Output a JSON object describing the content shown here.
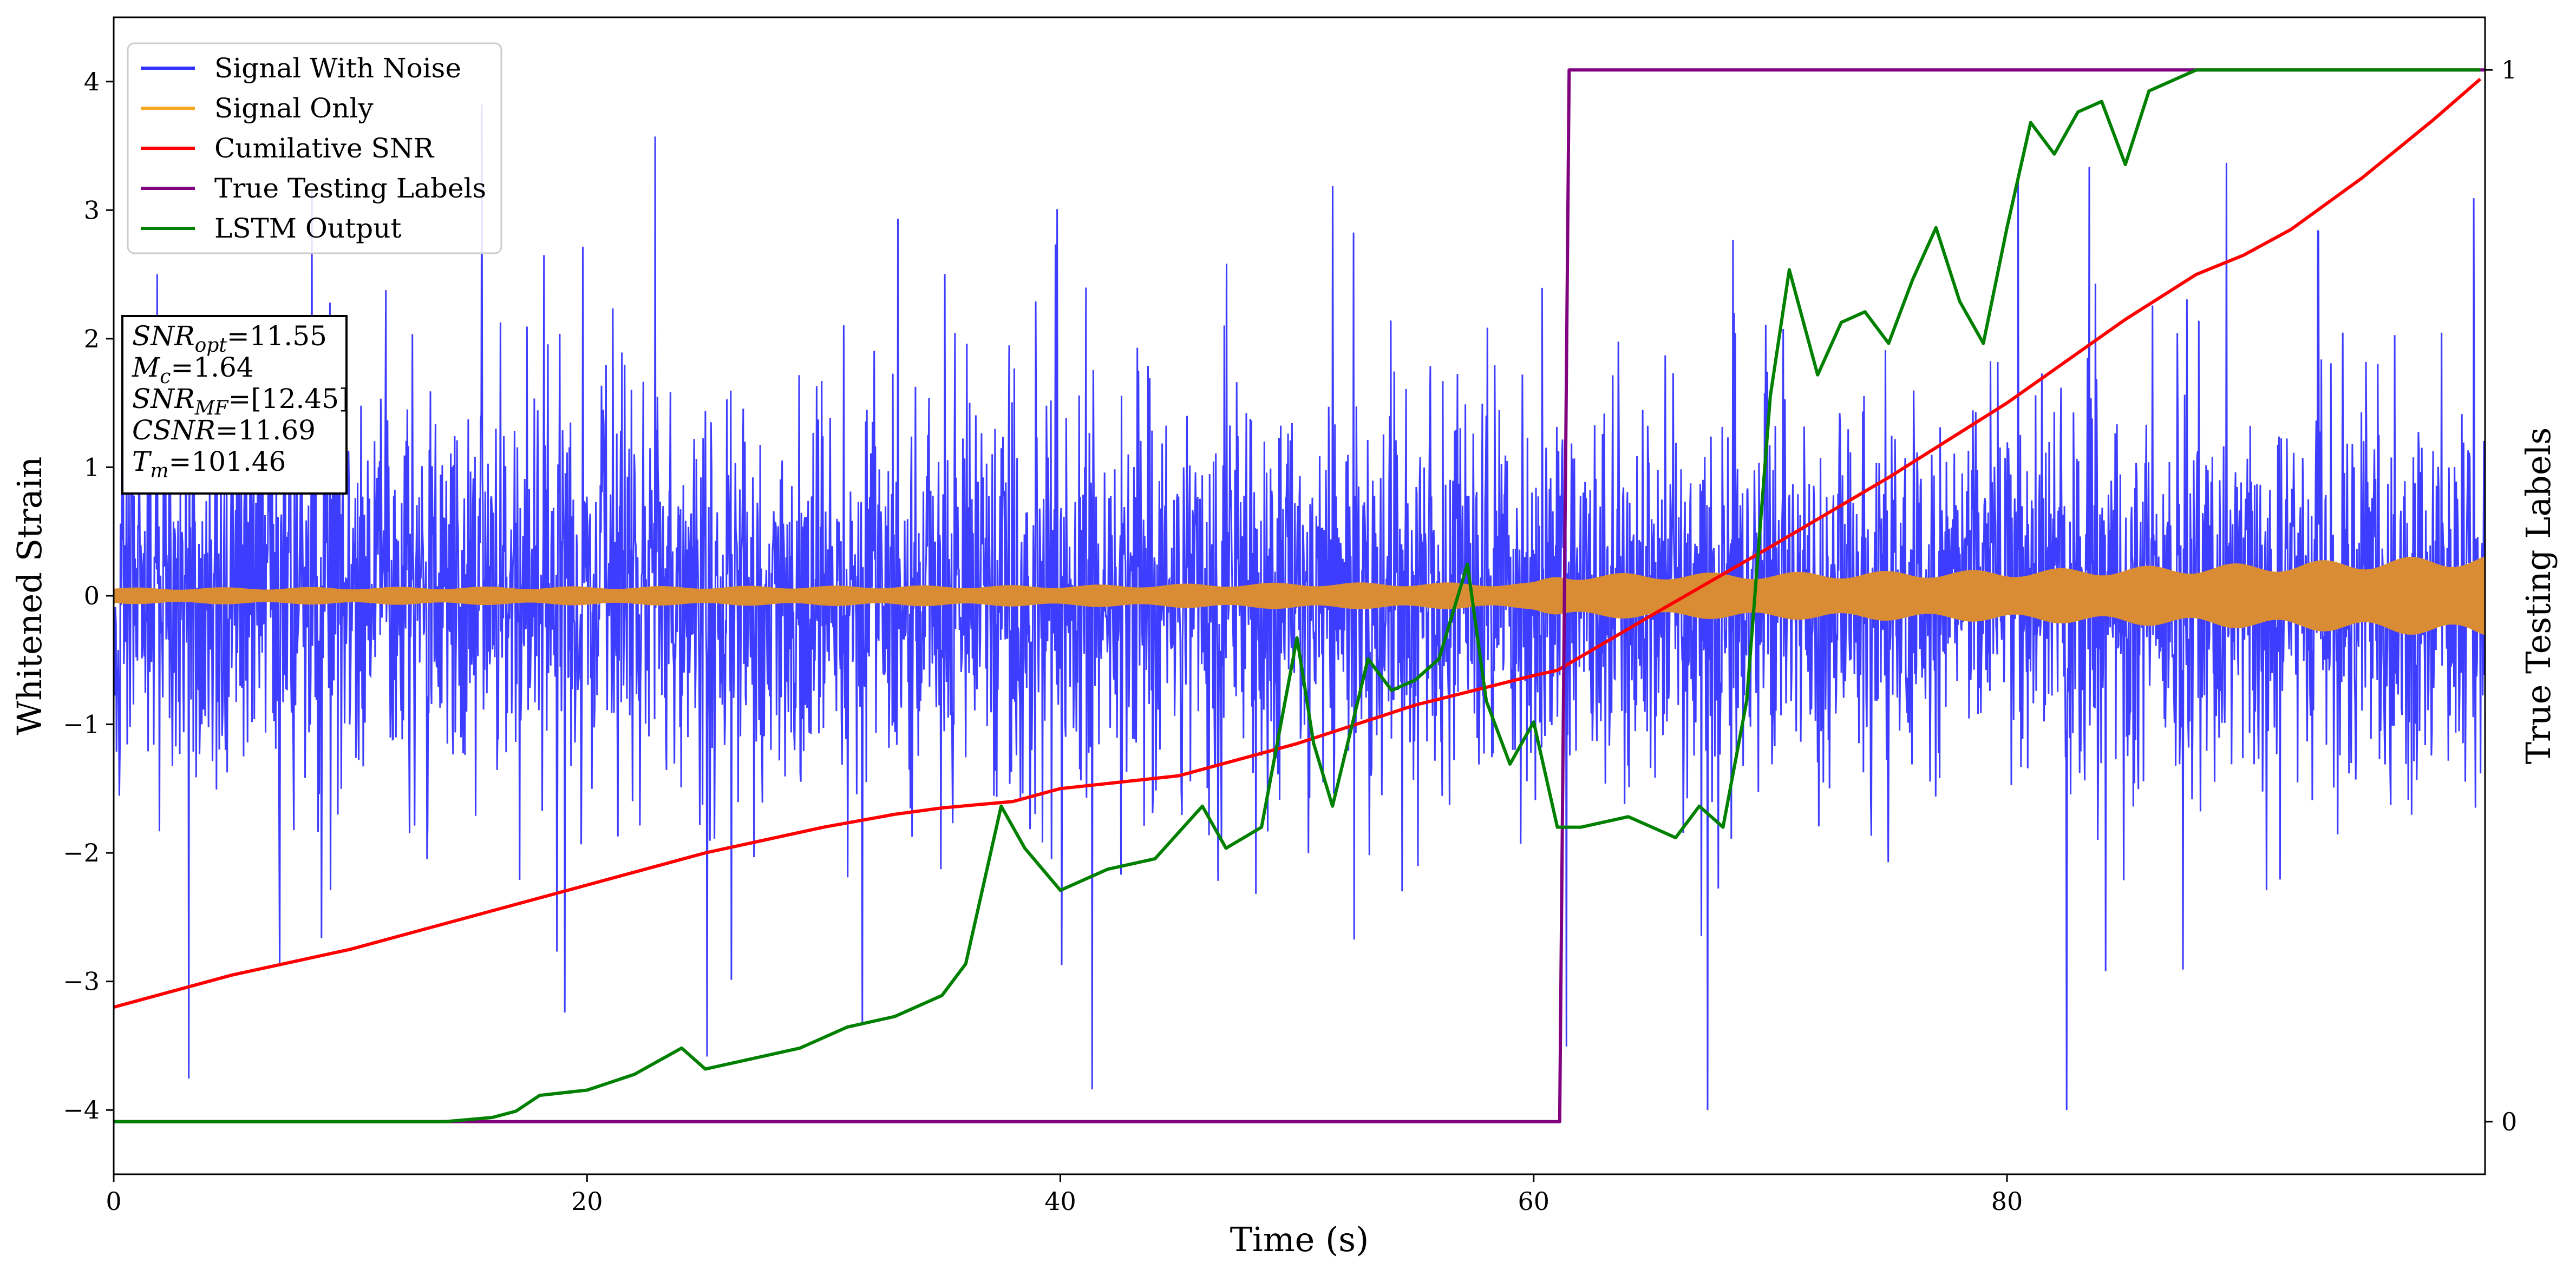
{
  "chart_data": {
    "type": "line",
    "title": "",
    "xlabel": "Time (s)",
    "ylabel": "Whitened Strain",
    "y2label": "True Testing Labels",
    "xlim": [
      0,
      100.2
    ],
    "ylim": [
      -4.5,
      4.5
    ],
    "y2lim": [
      -0.05,
      1.05
    ],
    "x_ticks": [
      0,
      20,
      40,
      60,
      80
    ],
    "x_tick_labels": [
      "0",
      "20",
      "40",
      "60",
      "80"
    ],
    "y_ticks": [
      -4,
      -3,
      -2,
      -1,
      0,
      1,
      2,
      3,
      4
    ],
    "y_tick_labels": [
      "−4",
      "−3",
      "−2",
      "−1",
      "0",
      "1",
      "2",
      "3",
      "4"
    ],
    "y2_ticks": [
      0,
      1
    ],
    "y2_tick_labels": [
      "0",
      "1"
    ],
    "grid": false,
    "legend_position": "top-left",
    "legend": [
      {
        "label": "Signal With Noise",
        "color": "#3333ff"
      },
      {
        "label": "Signal Only",
        "color": "#f5a623"
      },
      {
        "label": "Cumilative SNR",
        "color": "#ff0000"
      },
      {
        "label": "True Testing Labels",
        "color": "#800080"
      },
      {
        "label": "LSTM Output",
        "color": "#008000"
      }
    ],
    "stats_box": [
      {
        "base": "SNR",
        "sub": "opt",
        "value": "=11.55"
      },
      {
        "base": "M",
        "sub": "c",
        "value": "=1.64"
      },
      {
        "base": "SNR",
        "sub": "MF",
        "value": "=[12.45]"
      },
      {
        "base": "CSNR",
        "sub": "",
        "value": "=11.69"
      },
      {
        "base": "T",
        "sub": "m",
        "value": "=101.46"
      }
    ],
    "series": [
      {
        "name": "Signal With Noise",
        "axis": "left",
        "color": "#3333ff",
        "style": "dense noisy signal, approximate extent",
        "core_band": [
          -1.5,
          1.7
        ],
        "spike_range": [
          -4.0,
          4.1
        ]
      },
      {
        "name": "Signal Only",
        "axis": "left",
        "color": "#d98c33",
        "style": "oscillating envelope, approximate amplitude",
        "x": [
          0,
          20,
          40,
          50,
          60,
          61,
          70,
          80,
          90,
          100
        ],
        "amplitude": [
          0.06,
          0.07,
          0.08,
          0.1,
          0.1,
          0.17,
          0.18,
          0.2,
          0.25,
          0.32
        ]
      },
      {
        "name": "Cumilative SNR",
        "axis": "left",
        "color": "#ff0000",
        "x": [
          0,
          5,
          10,
          15,
          20,
          25,
          30,
          33,
          35,
          38,
          40,
          45,
          50,
          55,
          60,
          61,
          65,
          70,
          75,
          80,
          85,
          88,
          90,
          92,
          95,
          98,
          100
        ],
        "y": [
          -3.2,
          -2.95,
          -2.75,
          -2.5,
          -2.25,
          -2.0,
          -1.8,
          -1.7,
          -1.65,
          -1.6,
          -1.5,
          -1.4,
          -1.15,
          -0.85,
          -0.62,
          -0.58,
          -0.15,
          0.38,
          0.92,
          1.5,
          2.15,
          2.5,
          2.65,
          2.85,
          3.25,
          3.7,
          4.02
        ]
      },
      {
        "name": "True Testing Labels",
        "axis": "right",
        "color": "#800080",
        "x": [
          0,
          61.1,
          61.5,
          100.2
        ],
        "y": [
          0,
          0,
          1,
          1
        ]
      },
      {
        "name": "LSTM Output",
        "axis": "right",
        "color": "#008000",
        "x": [
          0,
          14,
          16,
          17,
          18,
          20,
          22,
          24,
          25,
          27,
          29,
          31,
          33,
          35,
          36,
          37.5,
          38.5,
          40,
          42,
          44,
          46,
          47,
          48.5,
          50,
          50.7,
          51.5,
          53,
          54,
          55,
          56,
          57.2,
          58,
          59,
          60,
          61,
          62,
          64,
          66,
          67,
          68,
          69,
          70,
          70.8,
          72,
          73,
          74,
          75,
          76,
          77,
          78,
          79,
          80,
          81,
          82,
          83,
          84,
          85,
          86,
          87,
          88,
          90,
          93,
          100
        ],
        "y": [
          0,
          0,
          0.004,
          0.01,
          0.025,
          0.03,
          0.045,
          0.07,
          0.05,
          0.06,
          0.07,
          0.09,
          0.1,
          0.12,
          0.15,
          0.3,
          0.26,
          0.22,
          0.24,
          0.25,
          0.3,
          0.26,
          0.28,
          0.46,
          0.36,
          0.3,
          0.44,
          0.41,
          0.42,
          0.44,
          0.53,
          0.4,
          0.34,
          0.38,
          0.28,
          0.28,
          0.29,
          0.27,
          0.3,
          0.28,
          0.4,
          0.69,
          0.81,
          0.71,
          0.76,
          0.77,
          0.74,
          0.8,
          0.85,
          0.78,
          0.74,
          0.85,
          0.95,
          0.92,
          0.96,
          0.97,
          0.91,
          0.98,
          0.99,
          1.0,
          1.0,
          1.0,
          1.0
        ]
      }
    ]
  }
}
